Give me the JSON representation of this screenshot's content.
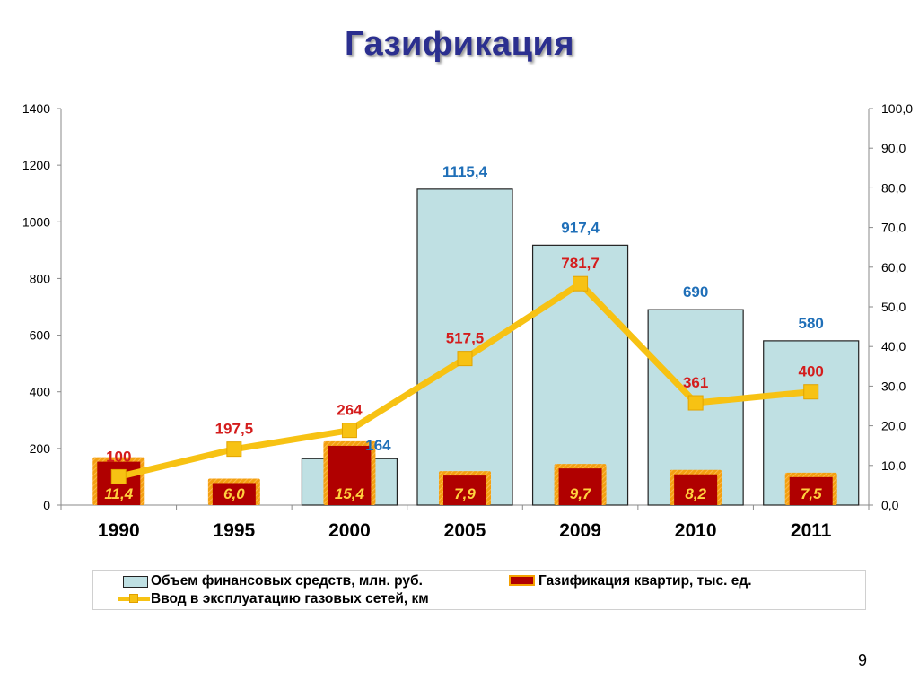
{
  "title": "Газификация",
  "slide_number": "9",
  "colors": {
    "title": "#2b2f8f",
    "bar_fill": "#bfe0e3",
    "bar_stroke": "#222222",
    "small_bar_fill": "#b00000",
    "small_bar_border": "#f5a000",
    "line": "#f7c213",
    "marker": "#f7c213",
    "label_blue": "#1f6fb8",
    "label_red": "#d41c1c",
    "small_label": "#ffd23f"
  },
  "legend": {
    "funds": "Объем финансовых средств, млн. руб.",
    "apartments": "Газификация квартир, тыс. ед.",
    "networks": "Ввод в эксплуатацию газовых сетей, км"
  },
  "chart_data": {
    "type": "bar",
    "categories": [
      "1990",
      "1995",
      "2000",
      "2005",
      "2009",
      "2010",
      "2011"
    ],
    "series": [
      {
        "name": "Объем финансовых средств, млн. руб.",
        "kind": "bar",
        "axis": "left",
        "values": [
          null,
          null,
          164,
          1115.4,
          917.4,
          690,
          580
        ],
        "labels": [
          "",
          "",
          "164",
          "1115,4",
          "917,4",
          "690",
          "580"
        ]
      },
      {
        "name": "Газификация квартир, тыс. ед.",
        "kind": "bar",
        "axis": "right",
        "values": [
          11.4,
          6.0,
          15.4,
          7.9,
          9.7,
          8.2,
          7.5
        ],
        "labels": [
          "11,4",
          "6,0",
          "15,4",
          "7,9",
          "9,7",
          "8,2",
          "7,5"
        ]
      },
      {
        "name": "Ввод в эксплуатацию газовых сетей, км",
        "kind": "line",
        "axis": "left",
        "values": [
          100,
          197.5,
          264,
          517.5,
          781.7,
          361,
          400
        ],
        "labels": [
          "100",
          "197,5",
          "264",
          "517,5",
          "781,7",
          "361",
          "400"
        ]
      }
    ],
    "y_left": {
      "min": 0,
      "max": 1400,
      "ticks": [
        "0",
        "200",
        "400",
        "600",
        "800",
        "1000",
        "1200",
        "1400"
      ]
    },
    "y_right": {
      "min": 0,
      "max": 100,
      "ticks": [
        "0,0",
        "10,0",
        "20,0",
        "30,0",
        "40,0",
        "50,0",
        "60,0",
        "70,0",
        "80,0",
        "90,0",
        "100,0"
      ]
    },
    "grid": false,
    "legend_position": "bottom"
  }
}
